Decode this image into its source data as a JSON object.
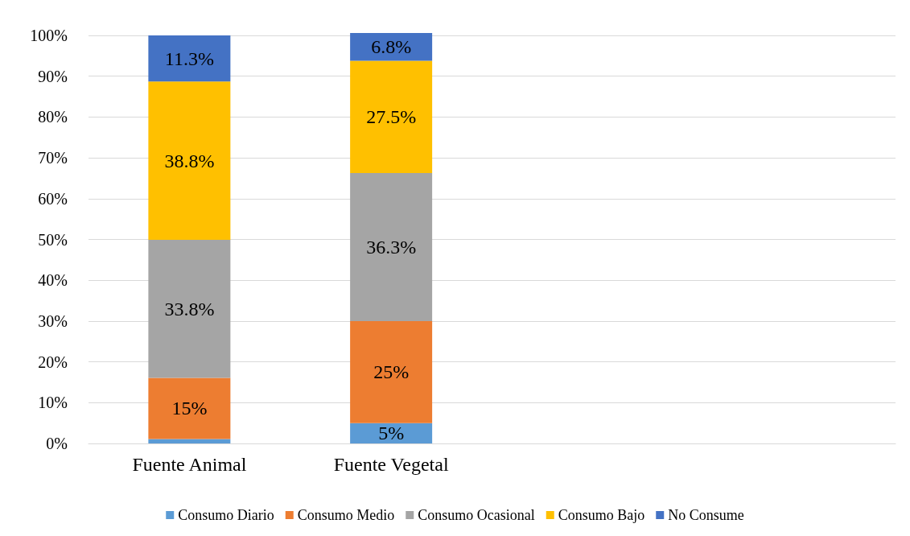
{
  "chart_data": {
    "type": "bar",
    "stacked": true,
    "categories": [
      "Fuente Animal",
      "Fuente Vegetal",
      null,
      null
    ],
    "series": [
      {
        "name": "Consumo Diario",
        "color": "#5b9bd5",
        "values": [
          1.1,
          5,
          null,
          null
        ],
        "value_labels": [
          null,
          "5%",
          null,
          null
        ]
      },
      {
        "name": "Consumo Medio",
        "color": "#ed7d31",
        "values": [
          15,
          25,
          null,
          null
        ],
        "value_labels": [
          "15%",
          "25%",
          null,
          null
        ]
      },
      {
        "name": "Consumo Ocasional",
        "color": "#a5a5a5",
        "values": [
          33.8,
          36.3,
          null,
          null
        ],
        "value_labels": [
          "33.8%",
          "36.3%",
          null,
          null
        ]
      },
      {
        "name": "Consumo Bajo",
        "color": "#ffc000",
        "values": [
          38.8,
          27.5,
          null,
          null
        ],
        "value_labels": [
          "38.8%",
          "27.5%",
          null,
          null
        ]
      },
      {
        "name": "No Consume",
        "color": "#4472c4",
        "values": [
          11.3,
          6.8,
          null,
          null
        ],
        "value_labels": [
          "11.3%",
          "6.8%",
          null,
          null
        ]
      }
    ],
    "ylim": [
      0,
      100.6
    ],
    "yticks": [
      {
        "value": 0,
        "label": "0%"
      },
      {
        "value": 10,
        "label": "10%"
      },
      {
        "value": 20,
        "label": "20%"
      },
      {
        "value": 30,
        "label": "30%"
      },
      {
        "value": 40,
        "label": "40%"
      },
      {
        "value": 50,
        "label": "50%"
      },
      {
        "value": 60,
        "label": "60%"
      },
      {
        "value": 70,
        "label": "70%"
      },
      {
        "value": 80,
        "label": "80%"
      },
      {
        "value": 90,
        "label": "90%"
      },
      {
        "value": 100,
        "label": "100%"
      }
    ],
    "grid": "y",
    "legend": "bottom"
  }
}
